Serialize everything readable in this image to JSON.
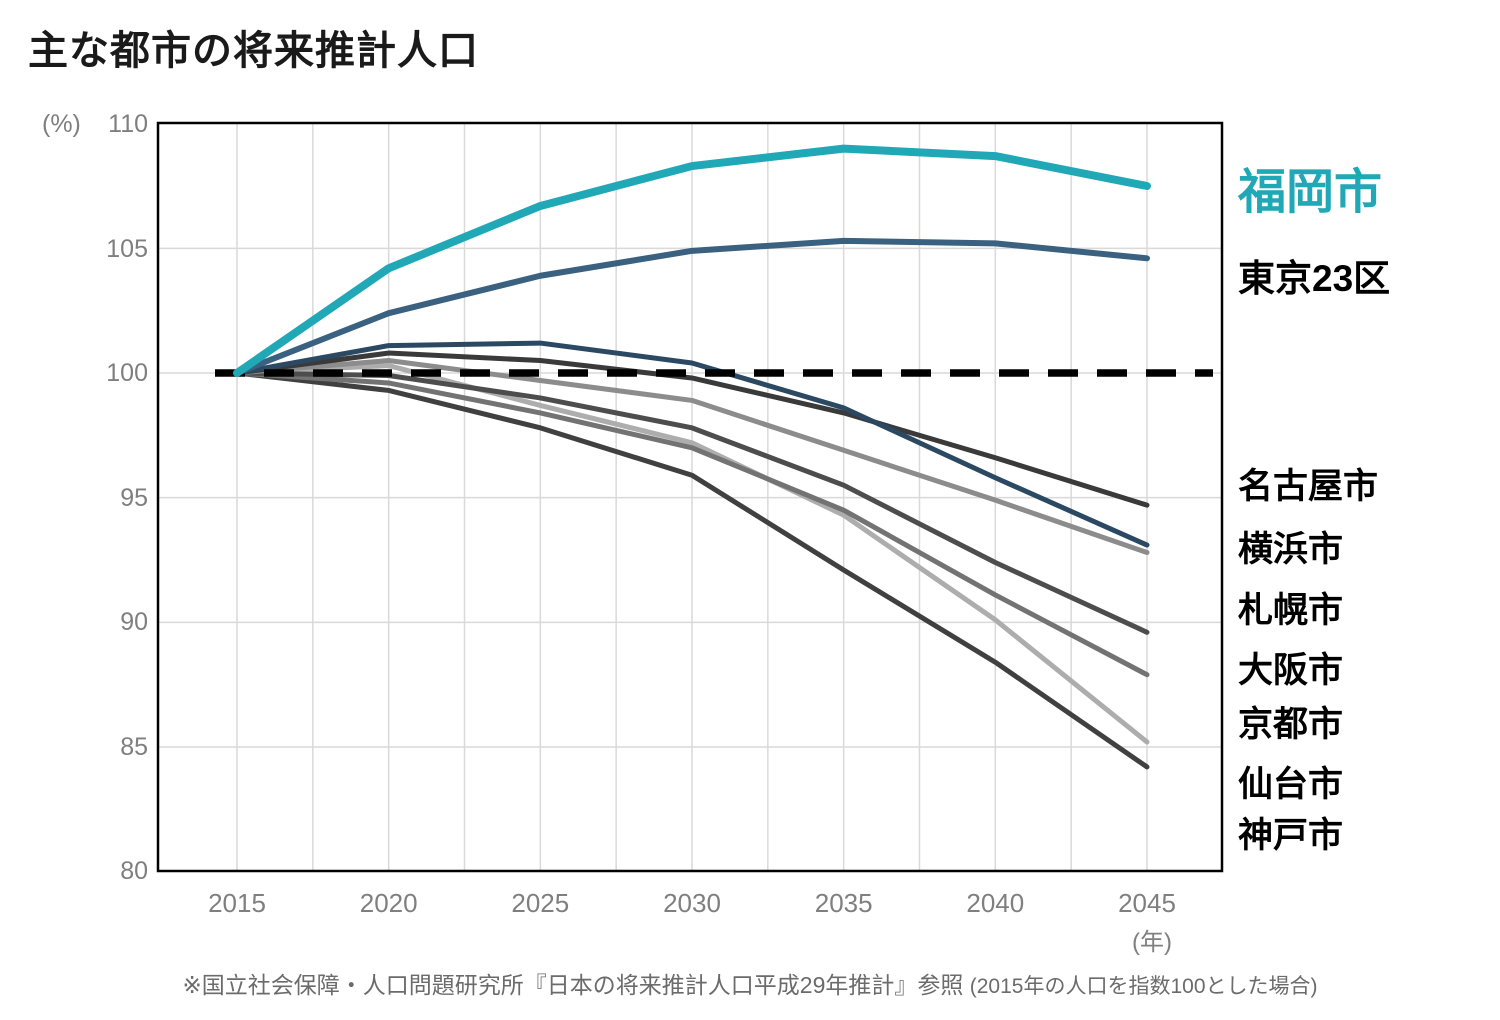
{
  "title": "主な都市の将来推計人口",
  "axes": {
    "y_unit": "(%)",
    "x_unit": "(年)",
    "y_ticks": [
      "110",
      "105",
      "100",
      "95",
      "90",
      "85",
      "80"
    ],
    "x_ticks": [
      "2015",
      "2020",
      "2025",
      "2030",
      "2035",
      "2040",
      "2045"
    ],
    "y_range": [
      80,
      110
    ],
    "grid_color": "#d9d9d9",
    "frame_color": "#000000"
  },
  "chart_data": {
    "type": "line",
    "title": "主な都市の将来推計人口",
    "xlabel": "年",
    "ylabel": "%",
    "x": [
      2015,
      2020,
      2025,
      2030,
      2035,
      2040,
      2045
    ],
    "ylim": [
      80,
      110
    ],
    "grid": "on",
    "baseline": {
      "value": 100,
      "style": "dashed",
      "color": "#000000",
      "note": "2015年=100"
    },
    "series": [
      {
        "name": "神戸市",
        "color": "#404040",
        "width": 5,
        "values": [
          100,
          99.3,
          97.8,
          95.9,
          92.1,
          88.4,
          84.2
        ]
      },
      {
        "name": "仙台市",
        "color": "#adadad",
        "width": 5,
        "values": [
          100,
          100.3,
          98.7,
          97.2,
          94.3,
          90.1,
          85.2
        ]
      },
      {
        "name": "京都市",
        "color": "#737373",
        "width": 5,
        "values": [
          100,
          99.6,
          98.4,
          97.0,
          94.5,
          91.1,
          87.9
        ]
      },
      {
        "name": "大阪市",
        "color": "#4d4d4d",
        "width": 5,
        "values": [
          100,
          99.9,
          99.0,
          97.8,
          95.5,
          92.4,
          89.6
        ]
      },
      {
        "name": "札幌市",
        "color": "#8c8c8c",
        "width": 5,
        "values": [
          100,
          100.5,
          99.7,
          98.9,
          96.9,
          94.9,
          92.8
        ]
      },
      {
        "name": "名古屋市",
        "color": "#3a3a3a",
        "width": 5,
        "values": [
          100,
          100.8,
          100.5,
          99.8,
          98.4,
          96.6,
          94.7
        ]
      },
      {
        "name": "横浜市",
        "color": "#2b4963",
        "width": 5,
        "values": [
          100,
          101.1,
          101.2,
          100.4,
          98.6,
          95.8,
          93.1
        ]
      },
      {
        "name": "東京23区",
        "color": "#3a6180",
        "width": 6,
        "values": [
          100,
          102.4,
          103.9,
          104.9,
          105.3,
          105.2,
          104.6
        ]
      },
      {
        "name": "福岡市",
        "color": "#20a8b6",
        "width": 8,
        "values": [
          100,
          104.2,
          106.7,
          108.3,
          109.0,
          108.7,
          107.5
        ]
      }
    ]
  },
  "legend": {
    "items": [
      {
        "label": "福岡市",
        "color": "#20a8b6"
      },
      {
        "label": "東京23区",
        "color": "#000000"
      },
      {
        "label": "名古屋市",
        "color": "#000000"
      },
      {
        "label": "横浜市",
        "color": "#000000"
      },
      {
        "label": "札幌市",
        "color": "#000000"
      },
      {
        "label": "大阪市",
        "color": "#000000"
      },
      {
        "label": "京都市",
        "color": "#000000"
      },
      {
        "label": "仙台市",
        "color": "#000000"
      },
      {
        "label": "神戸市",
        "color": "#000000"
      }
    ]
  },
  "footer": {
    "source": "※国立社会保障・人口問題研究所『日本の将来推計人口平成29年推計』参照",
    "note": "(2015年の人口を指数100とした場合)"
  }
}
